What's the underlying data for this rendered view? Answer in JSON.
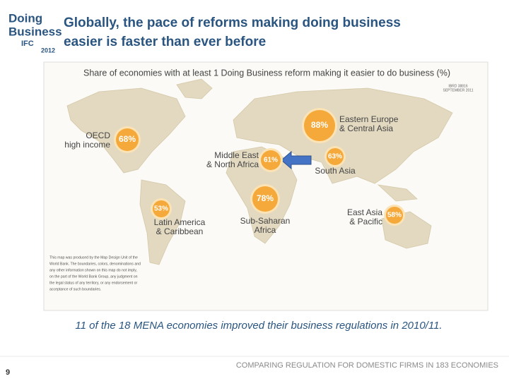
{
  "logo": {
    "line1": "Doing",
    "line2": "Business",
    "org": "IFC",
    "year": "2012"
  },
  "header": {
    "title_lines": [
      "Globally, the pace of reforms making doing business",
      "easier is faster than ever before"
    ]
  },
  "map": {
    "title": "Share of economies with at least 1 Doing Business reform making it easier to do business (%)",
    "map_id": [
      "IBRD 38816",
      "SEPTEMBER 2011"
    ],
    "regions": [
      {
        "label": [
          "Eastern Europe",
          "& Central Asia"
        ],
        "share": "88%"
      },
      {
        "label": [
          "OECD",
          "high income"
        ],
        "share": "68%"
      },
      {
        "label": [
          "Middle East",
          "& North Africa"
        ],
        "share": "61%"
      },
      {
        "label": [
          "South Asia"
        ],
        "share": "63%"
      },
      {
        "label": [
          "Sub-Saharan",
          "Africa"
        ],
        "share": "78%"
      },
      {
        "label": [
          "Latin America",
          "& Caribbean"
        ],
        "share": "53%"
      },
      {
        "label": [
          "East Asia",
          "& Pacific"
        ],
        "share": "58%"
      }
    ],
    "disclaimer": [
      "This map was produced by the Map Design Unit of the",
      "World Bank. The boundaries, colors, denominations and",
      "any other information shown on this map do not imply,",
      "on the part of the World Bank Group, any judgment on",
      "the legal status of any territory, or any endorsement or",
      "acceptance of such boundaries."
    ]
  },
  "caption": "11 of the 18 MENA economies improved their business regulations in 2010/11.",
  "footer": "COMPARING REGULATION FOR DOMESTIC FIRMS IN 183 ECONOMIES",
  "page_number": "9"
}
